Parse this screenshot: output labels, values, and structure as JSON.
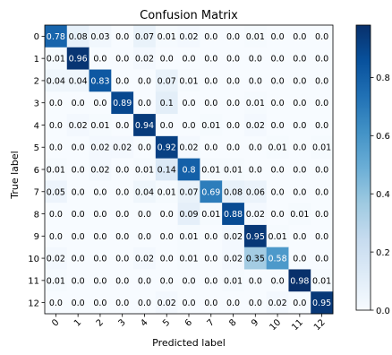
{
  "chart_data": {
    "type": "heatmap",
    "title": "Confusion Matrix",
    "xlabel": "Predicted label",
    "ylabel": "True label",
    "x_categories": [
      "0",
      "1",
      "2",
      "3",
      "4",
      "5",
      "6",
      "7",
      "8",
      "9",
      "10",
      "11",
      "12"
    ],
    "y_categories": [
      "0",
      "1",
      "2",
      "3",
      "4",
      "5",
      "6",
      "7",
      "8",
      "9",
      "10",
      "11",
      "12"
    ],
    "values": [
      [
        0.78,
        0.08,
        0.03,
        0.0,
        0.07,
        0.01,
        0.02,
        0.0,
        0.0,
        0.01,
        0.0,
        0.0,
        0.0
      ],
      [
        0.01,
        0.96,
        0.0,
        0.0,
        0.02,
        0.0,
        0.0,
        0.0,
        0.0,
        0.0,
        0.0,
        0.0,
        0.0
      ],
      [
        0.04,
        0.04,
        0.83,
        0.0,
        0.0,
        0.07,
        0.01,
        0.0,
        0.0,
        0.0,
        0.0,
        0.0,
        0.0
      ],
      [
        0.0,
        0.0,
        0.0,
        0.89,
        0.0,
        0.1,
        0.0,
        0.0,
        0.0,
        0.01,
        0.0,
        0.0,
        0.0
      ],
      [
        0.0,
        0.02,
        0.01,
        0.0,
        0.94,
        0.0,
        0.0,
        0.01,
        0.0,
        0.02,
        0.0,
        0.0,
        0.0
      ],
      [
        0.0,
        0.0,
        0.02,
        0.02,
        0.0,
        0.92,
        0.02,
        0.0,
        0.0,
        0.0,
        0.01,
        0.0,
        0.01
      ],
      [
        0.01,
        0.0,
        0.02,
        0.0,
        0.01,
        0.14,
        0.8,
        0.01,
        0.01,
        0.0,
        0.0,
        0.0,
        0.0
      ],
      [
        0.05,
        0.0,
        0.0,
        0.0,
        0.04,
        0.01,
        0.07,
        0.69,
        0.08,
        0.06,
        0.0,
        0.0,
        0.0
      ],
      [
        0.0,
        0.0,
        0.0,
        0.0,
        0.0,
        0.0,
        0.09,
        0.01,
        0.88,
        0.02,
        0.0,
        0.01,
        0.0
      ],
      [
        0.0,
        0.0,
        0.0,
        0.0,
        0.0,
        0.0,
        0.01,
        0.0,
        0.02,
        0.95,
        0.01,
        0.0,
        0.0
      ],
      [
        0.02,
        0.0,
        0.0,
        0.0,
        0.02,
        0.0,
        0.01,
        0.0,
        0.02,
        0.35,
        0.58,
        0.0,
        0.0
      ],
      [
        0.01,
        0.0,
        0.0,
        0.0,
        0.0,
        0.0,
        0.0,
        0.0,
        0.01,
        0.0,
        0.0,
        0.98,
        0.01
      ],
      [
        0.0,
        0.0,
        0.0,
        0.0,
        0.0,
        0.02,
        0.0,
        0.0,
        0.0,
        0.0,
        0.02,
        0.0,
        0.95
      ]
    ],
    "colorbar": {
      "ticks": [
        "0.0",
        "0.2",
        "0.4",
        "0.6",
        "0.8"
      ],
      "tick_values": [
        0.0,
        0.2,
        0.4,
        0.6,
        0.8
      ],
      "range": [
        0.0,
        0.98
      ]
    },
    "colormap": "Blues",
    "grid": false
  }
}
